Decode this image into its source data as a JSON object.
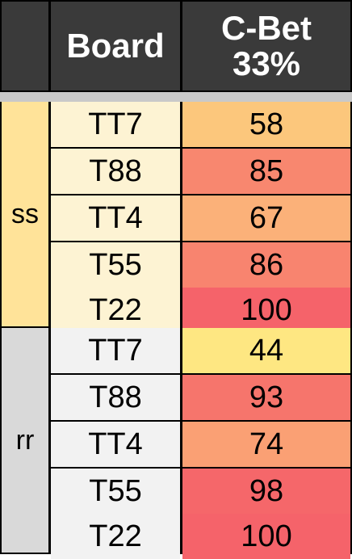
{
  "header": {
    "col0": "",
    "col1": "Board",
    "col2_line1": "C-Bet",
    "col2_line2": "33%"
  },
  "groups": [
    {
      "label": "ss",
      "label_bg": "#ffe399",
      "board_bg": "#fdf3d3",
      "rows": [
        {
          "board": "TT7",
          "value": "58",
          "color": "#fcc77c"
        },
        {
          "board": "T88",
          "value": "85",
          "color": "#f8876f"
        },
        {
          "board": "TT4",
          "value": "67",
          "color": "#fbb179"
        },
        {
          "board": "T55",
          "value": "86",
          "color": "#f8846f"
        },
        {
          "board": "T22",
          "value": "100",
          "color": "#f5636a"
        }
      ]
    },
    {
      "label": "rr",
      "label_bg": "#d9d9d9",
      "board_bg": "#f2f2f2",
      "rows": [
        {
          "board": "TT7",
          "value": "44",
          "color": "#fee782"
        },
        {
          "board": "T88",
          "value": "93",
          "color": "#f6756c"
        },
        {
          "board": "TT4",
          "value": "74",
          "color": "#faa074"
        },
        {
          "board": "T55",
          "value": "98",
          "color": "#f5676a"
        },
        {
          "board": "T22",
          "value": "100",
          "color": "#f5636a"
        }
      ]
    }
  ]
}
